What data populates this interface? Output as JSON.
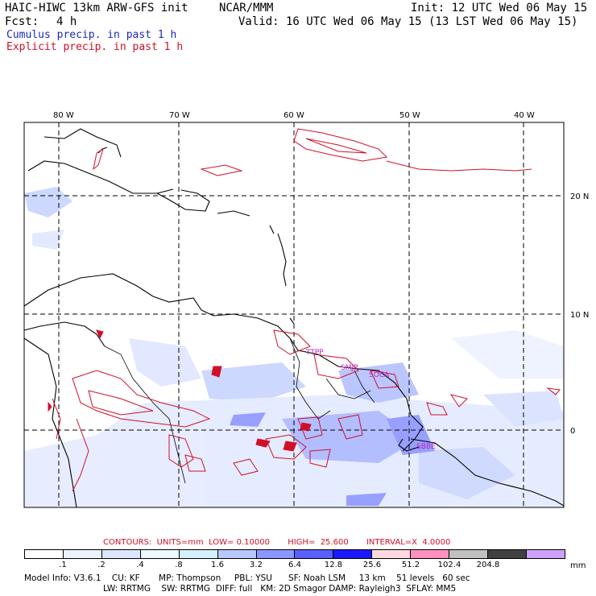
{
  "header": {
    "title": "HAIC-HIWC 13km ARW-GFS init",
    "org": "NCAR/MMM",
    "init": "Init: 12 UTC Wed 06 May 15",
    "fcst_label": "Fcst:",
    "fcst_value": "4 h",
    "valid": "Valid: 16 UTC Wed 06 May 15 (13 LST Wed 06 May 15)",
    "cumulus_legend": "Cumulus precip. in past 1 h",
    "explicit_legend": "Explicit precip. in past 1 h"
  },
  "map": {
    "lon_labels": [
      "80 W",
      "70 W",
      "60 W",
      "50 W",
      "40 W"
    ],
    "lat_labels": [
      "20 N",
      "10 N",
      "0"
    ],
    "place_labels": [
      "TTPP",
      "SMJP",
      "SOCA",
      "SBBE"
    ],
    "colors": {
      "coast": "#000000",
      "explicit": "#d0102a",
      "cumulus": "#5a6ae8",
      "place": "#c020c0"
    }
  },
  "footer": {
    "contours_line": "CONTOURS:  UNITS=mm  LOW= 0.10000       HIGH=  25.600       INTERVAL=X  4.0000",
    "colorbar_labels": [
      ".1",
      ".2",
      ".4",
      ".8",
      "1.6",
      "3.2",
      "6.4",
      "12.8",
      "25.6",
      "51.2",
      "102.4",
      "204.8"
    ],
    "colorbar_unit": "mm",
    "colorbar_colors": [
      "#ffffff",
      "#eef2ff",
      "#dce6ff",
      "#eef8ff",
      "#d4f0ff",
      "#b8c8ff",
      "#8c96ff",
      "#5a60ff",
      "#1c18ff",
      "#ffd8e0",
      "#ff90c0",
      "#c0c0c0",
      "#404040",
      "#d0a0ff"
    ],
    "info_line1": "Model Info: V3.6.1    CU: KF       MP: Thompson     PBL: YSU      SF: Noah LSM     13 km    51 levels   60 sec",
    "info_line2": "LW: RRTMG    SW: RRTMG  DIFF: full   KM: 2D Smagor DAMP: Rayleigh3  SFLAY: MM5"
  }
}
